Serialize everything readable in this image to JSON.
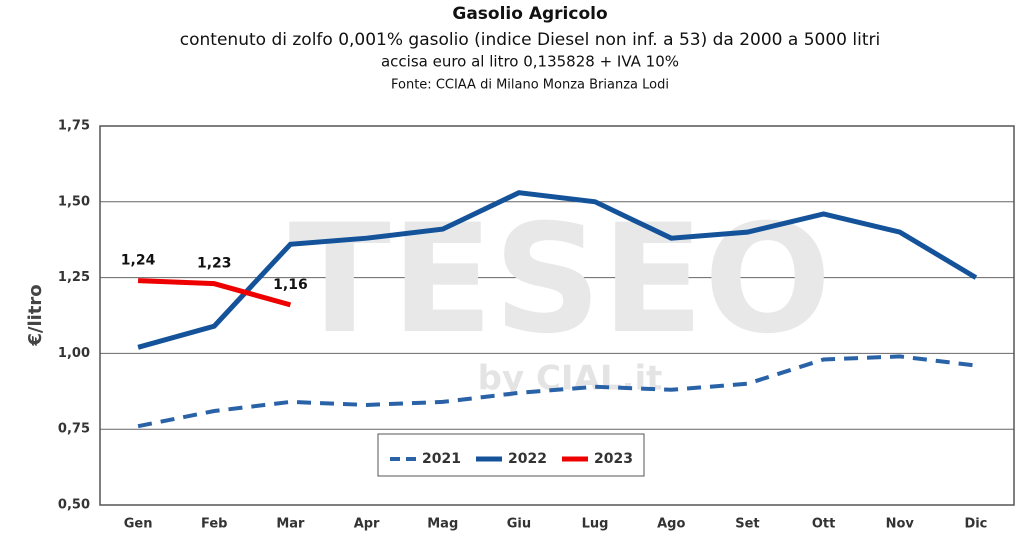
{
  "chart_data": {
    "type": "line",
    "title": "Gasolio Agricolo",
    "subtitle": "contenuto di zolfo 0,001% gasolio (indice Diesel non inf. a 53) da 2000 a 5000 litri",
    "subtitle2": "accisa euro al litro 0,135828 + IVA 10%",
    "source": "Fonte: CCIAA di Milano Monza Brianza Lodi",
    "watermark": "TESEO",
    "watermark2": "by CIAL.it",
    "y_label": "€/litro",
    "categories": [
      "Gen",
      "Feb",
      "Mar",
      "Apr",
      "Mag",
      "Giu",
      "Lug",
      "Ago",
      "Set",
      "Ott",
      "Nov",
      "Dic"
    ],
    "series": [
      {
        "name": "2021",
        "color": "#2a62a8",
        "dashed": true,
        "values": [
          0.76,
          0.81,
          0.84,
          0.83,
          0.84,
          0.87,
          0.89,
          0.88,
          0.9,
          0.98,
          0.99,
          0.96
        ]
      },
      {
        "name": "2022",
        "color": "#14539a",
        "dashed": false,
        "values": [
          1.02,
          1.09,
          1.36,
          1.38,
          1.41,
          1.53,
          1.5,
          1.38,
          1.4,
          1.46,
          1.4,
          1.25
        ]
      },
      {
        "name": "2023",
        "color": "#ee0000",
        "dashed": false,
        "values": [
          1.24,
          1.23,
          1.16,
          null,
          null,
          null,
          null,
          null,
          null,
          null,
          null,
          null
        ],
        "value_labels": [
          "1,24",
          "1,23",
          "1,16",
          null,
          null,
          null,
          null,
          null,
          null,
          null,
          null,
          null
        ]
      }
    ],
    "ylim": [
      0.5,
      1.75
    ],
    "yticks": [
      {
        "value": 0.5,
        "label": "0,50"
      },
      {
        "value": 0.75,
        "label": "0,75"
      },
      {
        "value": 1.0,
        "label": "1,00"
      },
      {
        "value": 1.25,
        "label": "1,25"
      },
      {
        "value": 1.5,
        "label": "1,50"
      },
      {
        "value": 1.75,
        "label": "1,75"
      }
    ],
    "grid": true,
    "legend": "bottom-center"
  }
}
